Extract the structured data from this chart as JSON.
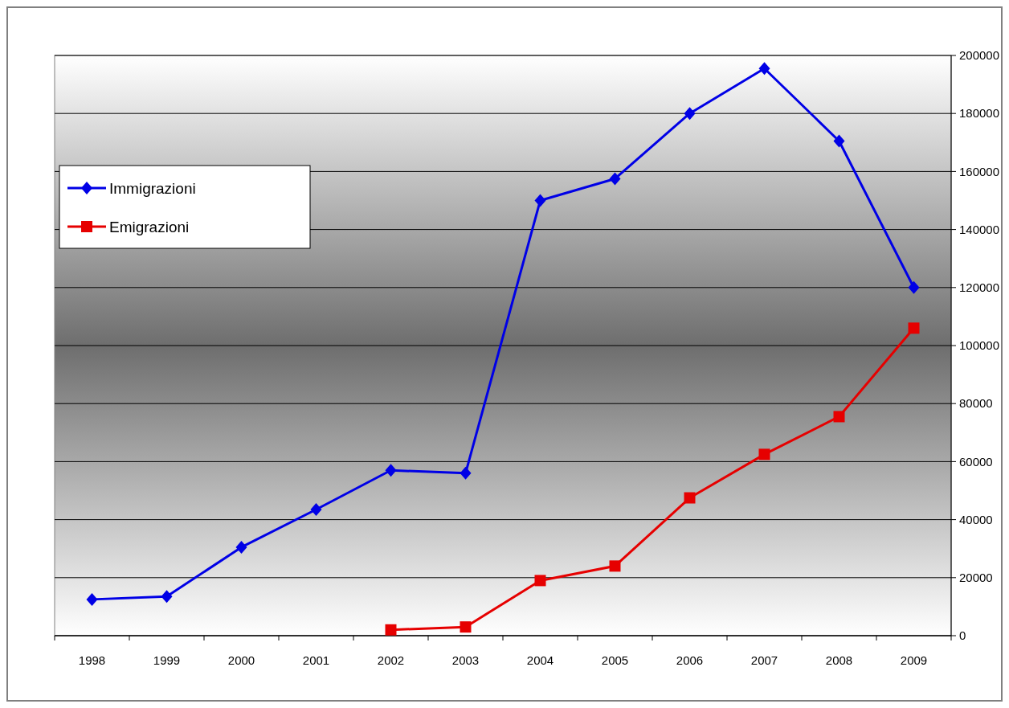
{
  "chart_data": {
    "type": "line",
    "categories": [
      "1998",
      "1999",
      "2000",
      "2001",
      "2002",
      "2003",
      "2004",
      "2005",
      "2006",
      "2007",
      "2008",
      "2009"
    ],
    "series": [
      {
        "name": "Immigrazioni",
        "color": "#0000e6",
        "marker": "diamond",
        "values": [
          12500,
          13500,
          30500,
          43500,
          57000,
          56000,
          150000,
          157500,
          180000,
          195500,
          170500,
          120000
        ]
      },
      {
        "name": "Emigrazioni",
        "color": "#e60000",
        "marker": "square",
        "values": [
          null,
          null,
          null,
          null,
          2000,
          3000,
          19000,
          24000,
          47500,
          62500,
          75500,
          106000
        ]
      }
    ],
    "ylim": [
      0,
      200000
    ],
    "yticks": [
      0,
      20000,
      40000,
      60000,
      80000,
      100000,
      120000,
      140000,
      160000,
      180000,
      200000
    ],
    "grid": "y",
    "legend": "top left",
    "line_style": "solid"
  }
}
